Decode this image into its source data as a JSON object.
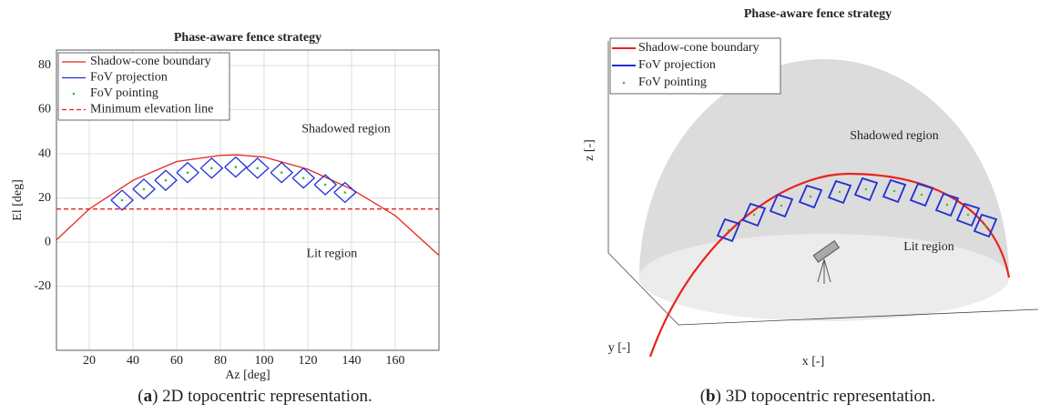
{
  "chart_data": [
    {
      "type": "line",
      "title": "Phase-aware fence strategy",
      "x_label": "Az [deg]",
      "y_label": "El [deg]",
      "xlim": [
        5,
        180
      ],
      "xticks": [
        20,
        40,
        60,
        80,
        100,
        120,
        140,
        160
      ],
      "ylim": [
        -49,
        87
      ],
      "yticks": [
        -20,
        0,
        20,
        40,
        60,
        80
      ],
      "grid": true,
      "legend": "upper left",
      "series": [
        {
          "name": "Shadow-cone boundary",
          "color": "#e8231c",
          "style": "line",
          "x": [
            5,
            20,
            40,
            60,
            80,
            88,
            100,
            120,
            140,
            160,
            180
          ],
          "y": [
            1,
            15,
            28,
            36.5,
            39.3,
            39.5,
            38.5,
            33,
            24,
            12,
            -6
          ]
        },
        {
          "name": "FoV projection",
          "color": "#1f2fd6",
          "style": "line",
          "x": [
            30,
            35,
            40,
            35,
            30,
            null,
            40,
            45,
            50,
            45,
            40,
            null,
            50,
            55,
            60,
            55,
            50,
            null,
            60,
            65,
            70,
            65,
            60,
            null,
            71,
            76,
            81,
            76,
            71,
            null,
            82,
            87,
            92,
            87,
            82,
            null,
            92,
            97,
            102,
            97,
            92,
            null,
            103,
            108,
            113,
            108,
            103,
            null,
            113,
            118,
            123,
            118,
            113,
            null,
            123,
            128,
            133,
            128,
            123,
            null,
            132,
            137,
            142,
            137,
            132
          ],
          "y": [
            19,
            23.5,
            19,
            14.5,
            19,
            null,
            24,
            28.5,
            24,
            19.5,
            24,
            null,
            28,
            32.5,
            28,
            23.5,
            28,
            null,
            31.5,
            36,
            31.5,
            27,
            31.5,
            null,
            33.5,
            38,
            33.5,
            29,
            33.5,
            null,
            34,
            38.5,
            34,
            29.5,
            34,
            null,
            33.5,
            38,
            33.5,
            29,
            33.5,
            null,
            31.5,
            36,
            31.5,
            27,
            31.5,
            null,
            29,
            33.5,
            29,
            24.5,
            29,
            null,
            26,
            30.5,
            26,
            21.5,
            26,
            null,
            22.5,
            27,
            22.5,
            18,
            22.5
          ]
        },
        {
          "name": "FoV pointing",
          "color": "#2fc12f",
          "style": "points",
          "x": [
            35,
            45,
            55,
            65,
            76,
            87,
            97,
            108,
            118,
            128,
            137
          ],
          "y": [
            19,
            24,
            28,
            31.5,
            33.5,
            34,
            33.5,
            31.5,
            29,
            26,
            22.5
          ]
        },
        {
          "name": "Minimum elevation line",
          "color": "#e8231c",
          "style": "dashed",
          "x": [
            5,
            180
          ],
          "y": [
            15,
            15
          ]
        }
      ],
      "annotations": [
        {
          "text": "Shadowed region",
          "x": 137.5,
          "y": 51
        },
        {
          "text": "Lit region",
          "x": 131,
          "y": -5.5
        }
      ],
      "caption": [
        "(",
        "a",
        ") 2D topocentric representation."
      ]
    },
    {
      "type": "3d",
      "title": "Phase-aware fence strategy",
      "x_label": "x [-]",
      "y_label": "y [-]",
      "z_label": "z [-]",
      "series": [
        {
          "name": "Shadow-cone boundary",
          "color": "#e8231c"
        },
        {
          "name": "FoV projection",
          "color": "#1f2fd6"
        },
        {
          "name": "FoV pointing",
          "color": "#2fc12f"
        }
      ],
      "annotations": [
        "Shadowed region",
        "Lit region"
      ],
      "caption": [
        "(",
        "b",
        ") 3D topocentric representation."
      ]
    }
  ]
}
